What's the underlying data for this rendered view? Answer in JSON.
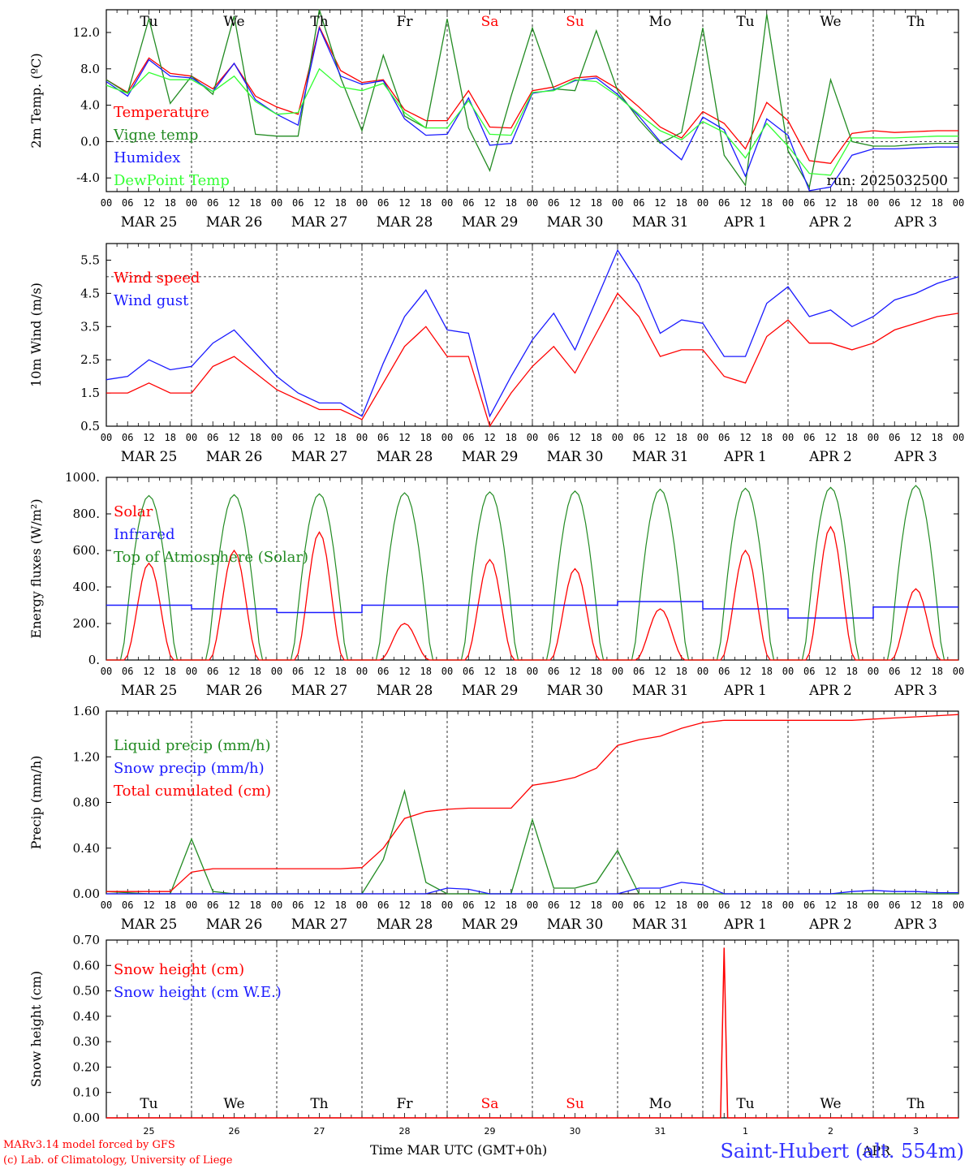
{
  "palette": {
    "red": "#ff0000",
    "darkgreen": "#228B22",
    "blue": "#1a1aff",
    "lightgreen": "#33ff33",
    "black": "#000000",
    "grid": "#000000"
  },
  "time_axis": {
    "hour_ticks": [
      "00",
      "06",
      "12",
      "18"
    ],
    "end_tick": "00",
    "dates": [
      "MAR 25",
      "MAR 26",
      "MAR 27",
      "MAR 28",
      "MAR 29",
      "MAR 30",
      "MAR 31",
      "APR  1",
      "APR  2",
      "APR  3"
    ],
    "weekdays": [
      "Tu",
      "We",
      "Th",
      "Fr",
      "Sa",
      "Su",
      "Mo",
      "Tu",
      "We",
      "Th"
    ],
    "weekday_colors": [
      "#000000",
      "#000000",
      "#000000",
      "#000000",
      "#ff0000",
      "#ff0000",
      "#000000",
      "#000000",
      "#000000",
      "#000000"
    ],
    "day_numbers": [
      "25",
      "26",
      "27",
      "28",
      "29",
      "30",
      "31",
      "1",
      "2",
      "3"
    ]
  },
  "chart_data": [
    {
      "type": "line",
      "ylabel": "2m Temp. (ºC)",
      "ylim": [
        -5.5,
        14.5
      ],
      "yticks": [
        "12.0",
        "8.0",
        "4.0",
        "0.0",
        "-4.0"
      ],
      "ytick_values": [
        12,
        8,
        4,
        0,
        -4
      ],
      "ref_line": 0,
      "run_label": "run: 2025032500",
      "x_hours": [
        0,
        6,
        12,
        18,
        24,
        30,
        36,
        42,
        48,
        54,
        60,
        66,
        72,
        78,
        84,
        90,
        96,
        102,
        108,
        114,
        120,
        126,
        132,
        138,
        144,
        150,
        156,
        162,
        168,
        174,
        180,
        186,
        192,
        198,
        204,
        210,
        216,
        222,
        228,
        234,
        240
      ],
      "series": [
        {
          "name": "Temperature",
          "color": "#ff0000",
          "values": [
            6.8,
            5.4,
            9.2,
            7.5,
            7.2,
            5.8,
            8.6,
            5.0,
            3.8,
            3.0,
            12.6,
            7.8,
            6.5,
            6.8,
            3.5,
            2.3,
            2.3,
            5.6,
            1.6,
            1.5,
            5.6,
            6.0,
            7.0,
            7.2,
            5.8,
            3.8,
            1.6,
            0.4,
            3.3,
            2.0,
            -0.8,
            4.3,
            2.3,
            -2.1,
            -2.4,
            0.9,
            1.2,
            1.0,
            1.1,
            1.2,
            1.2
          ]
        },
        {
          "name": "Vigne temp",
          "color": "#228B22",
          "values": [
            6.8,
            5.3,
            13.5,
            4.2,
            7.2,
            5.2,
            13.8,
            0.8,
            0.6,
            0.6,
            14.5,
            7.0,
            1.2,
            9.5,
            2.8,
            1.5,
            13.5,
            1.5,
            -3.2,
            5.0,
            12.5,
            5.8,
            5.6,
            12.2,
            5.6,
            2.4,
            -0.2,
            1.0,
            12.5,
            -1.5,
            -4.8,
            14.0,
            -1.0,
            -5.0,
            6.8,
            0.0,
            -0.5,
            -0.5,
            -0.3,
            -0.2,
            -0.2
          ]
        },
        {
          "name": "Humidex",
          "color": "#1a1aff",
          "values": [
            6.6,
            5.0,
            9.0,
            7.2,
            7.0,
            5.5,
            8.6,
            4.6,
            3.0,
            1.8,
            12.5,
            7.2,
            6.3,
            6.7,
            2.5,
            0.7,
            0.8,
            4.8,
            -0.4,
            -0.2,
            5.3,
            5.7,
            6.7,
            7.0,
            5.2,
            2.8,
            0.0,
            -2.0,
            2.7,
            1.3,
            -3.8,
            2.5,
            0.7,
            -5.4,
            -5.0,
            -1.5,
            -0.8,
            -0.8,
            -0.7,
            -0.6,
            -0.6
          ]
        },
        {
          "name": "DewPoint Temp",
          "color": "#33ff33",
          "values": [
            6.2,
            5.3,
            7.6,
            6.8,
            6.8,
            5.5,
            7.2,
            4.4,
            3.0,
            3.2,
            8.0,
            6.0,
            5.6,
            6.4,
            3.2,
            1.5,
            1.5,
            4.5,
            0.8,
            0.7,
            5.4,
            5.6,
            6.8,
            6.6,
            5.0,
            3.0,
            1.2,
            0.2,
            2.2,
            1.0,
            -1.8,
            2.0,
            -0.5,
            -3.5,
            -3.7,
            0.4,
            0.4,
            0.4,
            0.5,
            0.6,
            0.6
          ]
        }
      ]
    },
    {
      "type": "line",
      "ylabel": "10m Wind (m/s)",
      "ylim": [
        0.5,
        6.0
      ],
      "yticks": [
        "5.5",
        "4.5",
        "3.5",
        "2.5",
        "1.5",
        "0.5"
      ],
      "ytick_values": [
        5.5,
        4.5,
        3.5,
        2.5,
        1.5,
        0.5
      ],
      "ref_line": 5,
      "x_hours": [
        0,
        6,
        12,
        18,
        24,
        30,
        36,
        42,
        48,
        54,
        60,
        66,
        72,
        78,
        84,
        90,
        96,
        102,
        108,
        114,
        120,
        126,
        132,
        138,
        144,
        150,
        156,
        162,
        168,
        174,
        180,
        186,
        192,
        198,
        204,
        210,
        216,
        222,
        228,
        234,
        240
      ],
      "series": [
        {
          "name": "Wind speed",
          "color": "#ff0000",
          "values": [
            1.5,
            1.5,
            1.8,
            1.5,
            1.5,
            2.3,
            2.6,
            2.1,
            1.6,
            1.3,
            1.0,
            1.0,
            0.7,
            1.8,
            2.9,
            3.5,
            2.6,
            2.6,
            0.5,
            1.5,
            2.3,
            2.9,
            2.1,
            3.3,
            4.5,
            3.8,
            2.6,
            2.8,
            2.8,
            2.0,
            1.8,
            3.2,
            3.7,
            3.0,
            3.0,
            2.8,
            3.0,
            3.4,
            3.6,
            3.8,
            3.9
          ]
        },
        {
          "name": "Wind gust",
          "color": "#1a1aff",
          "values": [
            1.9,
            2.0,
            2.5,
            2.2,
            2.3,
            3.0,
            3.4,
            2.7,
            2.0,
            1.5,
            1.2,
            1.2,
            0.8,
            2.4,
            3.8,
            4.6,
            3.4,
            3.3,
            0.8,
            2.0,
            3.1,
            3.9,
            2.8,
            4.3,
            5.8,
            4.8,
            3.3,
            3.7,
            3.6,
            2.6,
            2.6,
            4.2,
            4.7,
            3.8,
            4.0,
            3.5,
            3.8,
            4.3,
            4.5,
            4.8,
            5.0
          ]
        }
      ]
    },
    {
      "type": "line",
      "ylabel": "Energy fluxes (W/m²)",
      "ylim": [
        0,
        1000
      ],
      "yticks": [
        "1000.",
        "800.",
        "600.",
        "400.",
        "200.",
        "0."
      ],
      "ytick_values": [
        1000,
        800,
        600,
        400,
        200,
        0
      ],
      "series": [
        {
          "name": "Solar",
          "color": "#ff0000",
          "daily_peak": [
            530,
            600,
            700,
            200,
            550,
            500,
            280,
            600,
            730,
            390
          ]
        },
        {
          "name": "Infrared",
          "color": "#1a1aff",
          "daily_level": [
            300,
            280,
            260,
            300,
            300,
            300,
            320,
            280,
            230,
            290
          ]
        },
        {
          "name": "Top of Atmosphere (Solar)",
          "color": "#228B22",
          "daily_peak": [
            900,
            905,
            910,
            915,
            920,
            925,
            935,
            940,
            945,
            955
          ]
        }
      ]
    },
    {
      "type": "line",
      "ylabel": "Precip (mm/h)",
      "ylim": [
        0,
        1.6
      ],
      "yticks": [
        "1.60",
        "1.20",
        "0.80",
        "0.40",
        "0.00"
      ],
      "ytick_values": [
        1.6,
        1.2,
        0.8,
        0.4,
        0.0
      ],
      "x_hours": [
        0,
        6,
        12,
        18,
        24,
        30,
        36,
        42,
        48,
        54,
        60,
        66,
        72,
        78,
        84,
        90,
        96,
        102,
        108,
        114,
        120,
        126,
        132,
        138,
        144,
        150,
        156,
        162,
        168,
        174,
        180,
        186,
        192,
        198,
        204,
        210,
        216,
        222,
        228,
        234,
        240
      ],
      "series": [
        {
          "name": "Liquid precip (mm/h)",
          "color": "#228B22",
          "values": [
            0.02,
            0.01,
            0.0,
            0.0,
            0.48,
            0.02,
            0.0,
            0.0,
            0.0,
            0.0,
            0.0,
            0.0,
            0.0,
            0.3,
            0.9,
            0.1,
            0.0,
            0.0,
            0.0,
            0.0,
            0.65,
            0.05,
            0.05,
            0.1,
            0.38,
            0.0,
            0.0,
            0.0,
            0.0,
            0.0,
            0.0,
            0.0,
            0.0,
            0.0,
            0.0,
            0.0,
            0.0,
            0.0,
            0.0,
            0.0,
            0.0
          ]
        },
        {
          "name": "Snow precip (mm/h)",
          "color": "#1a1aff",
          "values": [
            0,
            0,
            0,
            0,
            0,
            0,
            0,
            0,
            0,
            0,
            0,
            0,
            0,
            0,
            0,
            0,
            0.05,
            0.04,
            0,
            0,
            0,
            0,
            0,
            0,
            0,
            0.05,
            0.05,
            0.1,
            0.08,
            0.0,
            0,
            0,
            0,
            0,
            0,
            0.02,
            0.03,
            0.02,
            0.02,
            0.01,
            0.01
          ]
        },
        {
          "name": "Total cumulated (cm)",
          "color": "#ff0000",
          "values": [
            0.02,
            0.02,
            0.02,
            0.02,
            0.19,
            0.22,
            0.22,
            0.22,
            0.22,
            0.22,
            0.22,
            0.22,
            0.23,
            0.4,
            0.66,
            0.72,
            0.74,
            0.75,
            0.75,
            0.75,
            0.95,
            0.98,
            1.02,
            1.1,
            1.3,
            1.35,
            1.38,
            1.45,
            1.5,
            1.52,
            1.52,
            1.52,
            1.52,
            1.52,
            1.52,
            1.52,
            1.53,
            1.54,
            1.55,
            1.56,
            1.57
          ]
        }
      ]
    },
    {
      "type": "line",
      "ylabel": "Snow height (cm)",
      "ylim": [
        0,
        0.7
      ],
      "yticks": [
        "0.70",
        "0.60",
        "0.50",
        "0.40",
        "0.30",
        "0.20",
        "0.10",
        "0.00"
      ],
      "ytick_values": [
        0.7,
        0.6,
        0.5,
        0.4,
        0.3,
        0.2,
        0.1,
        0.0
      ],
      "series": [
        {
          "name": "Snow height (cm)",
          "color": "#ff0000",
          "spike_hour": 174,
          "spike_value": 0.67
        },
        {
          "name": "Snow height (cm W.E.)",
          "color": "#1a1aff"
        }
      ]
    }
  ],
  "footer": {
    "credit_line1": "MARv3.14 model forced by GFS",
    "credit_line2": "(c) Lab. of Climatology, University of Liege",
    "time_label": "Time MAR UTC (GMT+0h)",
    "station": "Saint-Hubert (alt. 554m)",
    "bottom_month": "APR"
  }
}
